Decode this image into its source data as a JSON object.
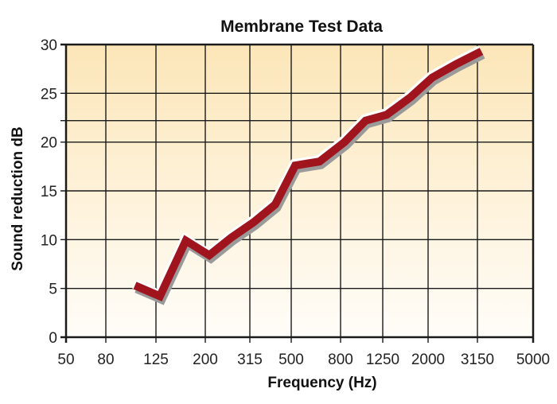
{
  "chart_data": {
    "type": "line",
    "title": "Membrane Test Data",
    "xlabel": "Frequency (Hz)",
    "ylabel": "Sound reduction dB",
    "x_tick_labels": [
      "50",
      "80",
      "125",
      "200",
      "315",
      "500",
      "800",
      "1250",
      "2000",
      "3150",
      "5000"
    ],
    "y_tick_labels": [
      "0",
      "5",
      "10",
      "15",
      "20",
      "25",
      "30"
    ],
    "ylim": [
      0,
      30
    ],
    "x_scale": "log (third-octave)",
    "grid": true,
    "extra_gridline_y": 22.2,
    "legend": null,
    "series": [
      {
        "name": "Membrane",
        "color": "#a0141e",
        "x": [
          100,
          125,
          160,
          200,
          250,
          315,
          400,
          500,
          630,
          800,
          1000,
          1250,
          1600,
          2000,
          2500,
          3150
        ],
        "values": [
          5.3,
          4.2,
          9.9,
          8.4,
          10.2,
          11.8,
          13.6,
          17.6,
          18.0,
          20.0,
          22.2,
          22.8,
          24.6,
          26.6,
          28.0,
          29.3
        ]
      }
    ]
  },
  "style": {
    "plot_top_color": "#fce6b8",
    "plot_bottom_color": "#fffdf9",
    "grid_color": "#1a1a1a",
    "line_color": "#a0141e",
    "shadow_color": "#9a9a9a"
  }
}
